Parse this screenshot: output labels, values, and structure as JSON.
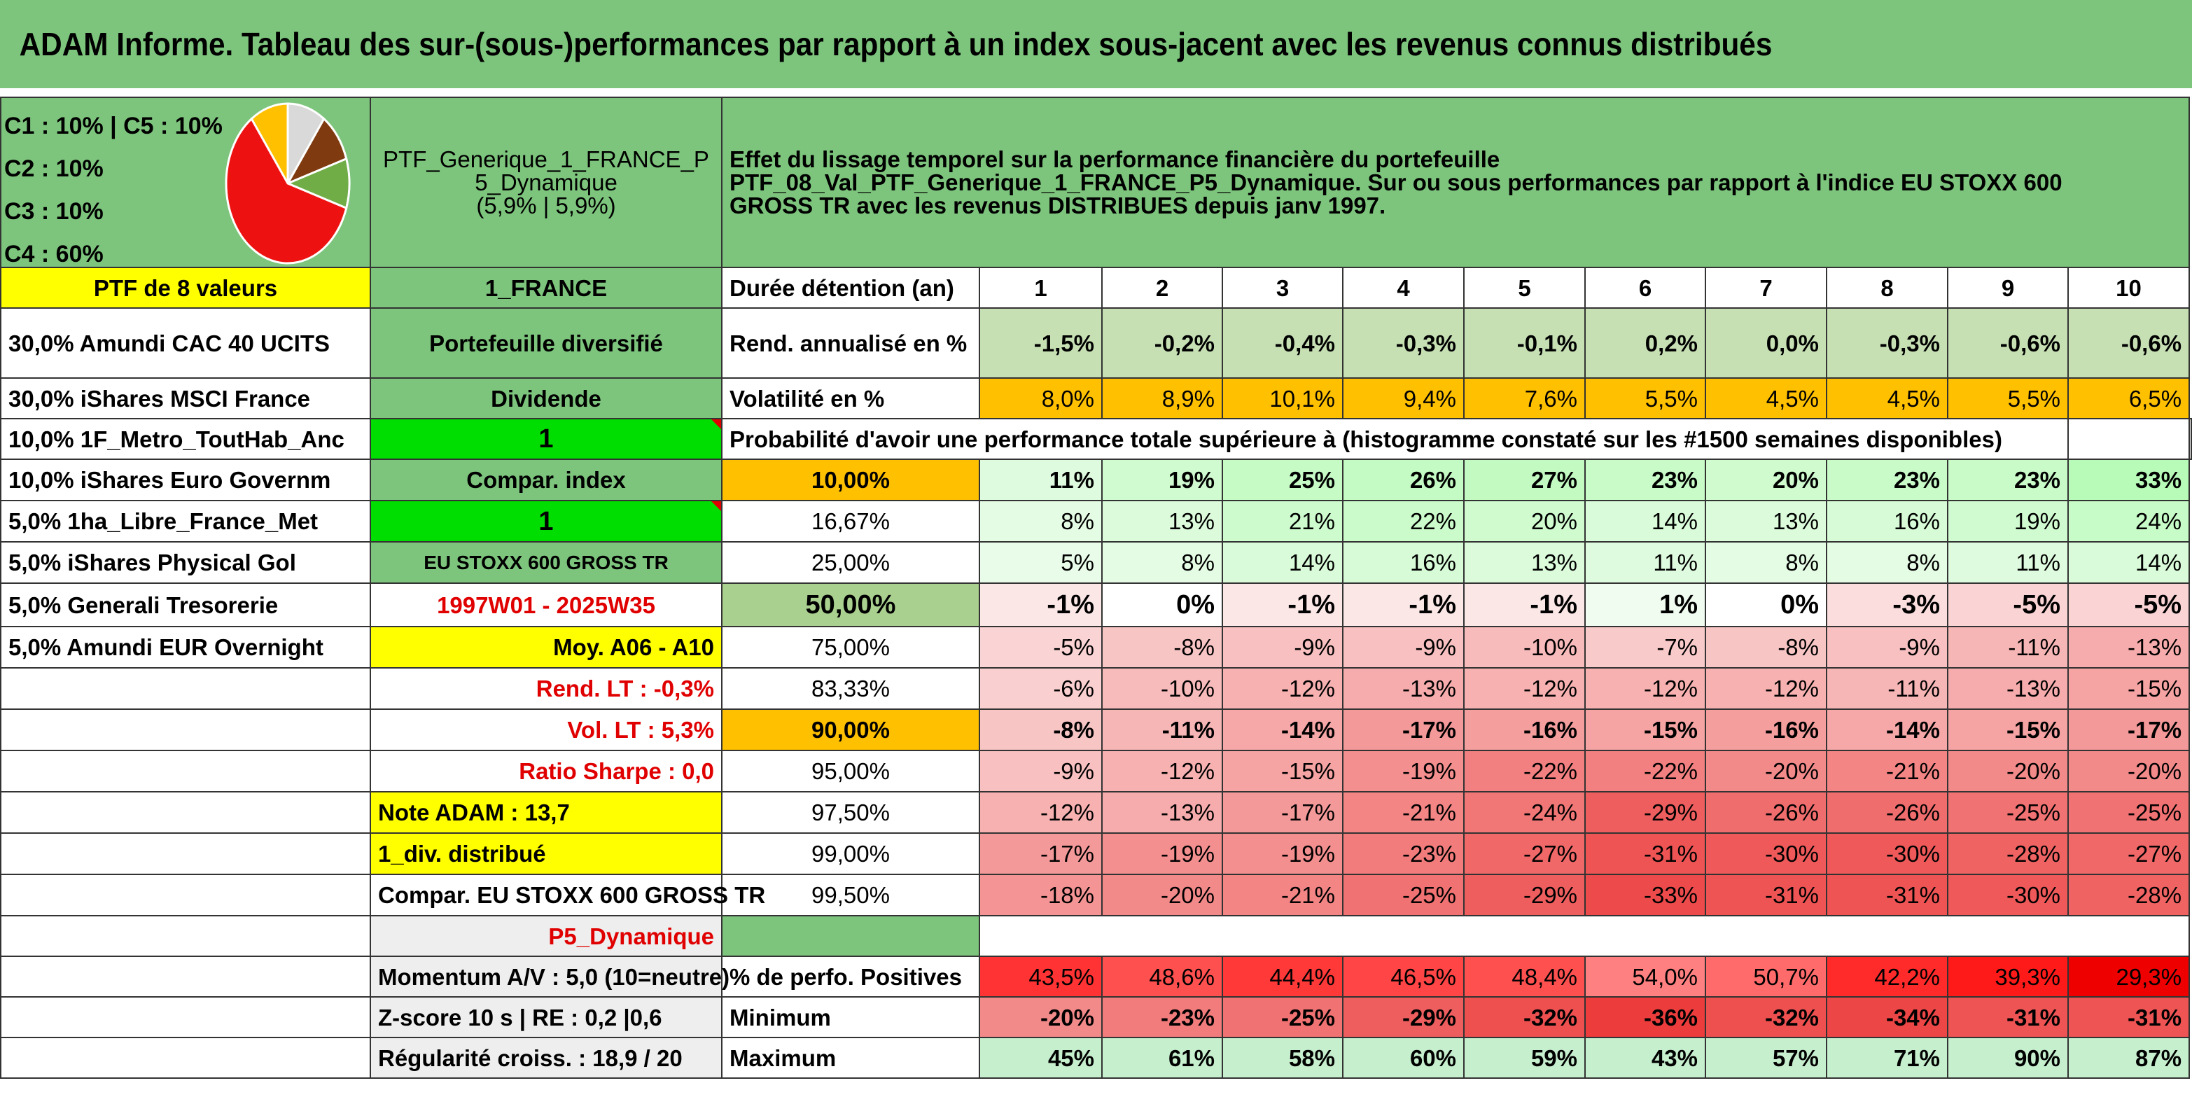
{
  "title": "ADAM Informe. Tableau des sur-(sous-)performances par rapport à un index sous-jacent avec les revenus connus distribués",
  "pie": {
    "labels": [
      "C1 : 10% | C5 : 10%",
      "C2 : 10%",
      "C3 : 10%",
      "C4 : 60%"
    ],
    "slices": [
      {
        "name": "C1",
        "value": 10,
        "color": "#d9d9d9"
      },
      {
        "name": "C2",
        "value": 10,
        "color": "#7f3a10"
      },
      {
        "name": "C3",
        "value": 10,
        "color": "#70ad47"
      },
      {
        "name": "C4",
        "value": 60,
        "color": "#ee1111"
      },
      {
        "name": "C5",
        "value": 10,
        "color": "#ffc000"
      }
    ]
  },
  "portfolio": {
    "name_line1": "PTF_Generique_1_FRANCE_P",
    "name_line2": "5_Dynamique",
    "name_line3": "(5,9% | 5,9%)"
  },
  "effect": {
    "line1": "Effet du lissage temporel sur la performance financière du portefeuille",
    "line2": "PTF_08_Val_PTF_Generique_1_FRANCE_P5_Dynamique. Sur ou sous performances par rapport à l'indice EU STOXX 600",
    "line3": "GROSS TR avec les revenus DISTRIBUES depuis janv 1997."
  },
  "left_col": [
    "PTF de 8 valeurs",
    "30,0% Amundi CAC 40 UCITS",
    "30,0% iShares MSCI France",
    "10,0% 1F_Metro_ToutHab_Anc",
    "10,0% iShares Euro Governm",
    "5,0% 1ha_Libre_France_Met",
    "5,0% iShares Physical Gol",
    "5,0% Generali Tresorerie",
    "5,0% Amundi EUR Overnight"
  ],
  "mid_col": {
    "france": "1_FRANCE",
    "diversifie": "Portefeuille diversifié",
    "dividende": "Dividende",
    "one_a": "1",
    "compar_index": "Compar. index",
    "one_b": "1",
    "index_name": "EU STOXX 600 GROSS TR",
    "period": "1997W01 - 2025W35",
    "moy": "Moy. A06 - A10",
    "rend_lt": "Rend. LT : -0,3%",
    "vol_lt": "Vol. LT : 5,3%",
    "sharpe": "Ratio Sharpe : 0,0",
    "note": "Note ADAM : 13,7",
    "div": "1_div. distribué",
    "compar": "Compar. EU STOXX 600 GROSS TR",
    "profile": "P5_Dynamique",
    "momentum": "Momentum A/V : 5,0 (10=neutre)",
    "zscore": "Z-score 10 s | RE : 0,2 |0,6",
    "regularite": "Régularité croiss. : 18,9 / 20"
  },
  "table": {
    "duree_label": "Durée détention (an)",
    "years": [
      "1",
      "2",
      "3",
      "4",
      "5",
      "6",
      "7",
      "8",
      "9",
      "10"
    ],
    "rend_label": "Rend. annualisé en %",
    "rend": [
      "-1,5%",
      "-0,2%",
      "-0,4%",
      "-0,3%",
      "-0,1%",
      "0,2%",
      "0,0%",
      "-0,3%",
      "-0,6%",
      "-0,6%"
    ],
    "vol_label": "Volatilité en %",
    "vol": [
      "8,0%",
      "8,9%",
      "10,1%",
      "9,4%",
      "7,6%",
      "5,5%",
      "4,5%",
      "4,5%",
      "5,5%",
      "6,5%"
    ],
    "proba_label": "Probabilité d'avoir une performance totale supérieure à (histogramme constaté sur les #1500 semaines disponibles)",
    "quantiles": [
      {
        "q": "10,00%",
        "vals": [
          "11%",
          "19%",
          "25%",
          "26%",
          "27%",
          "23%",
          "20%",
          "23%",
          "23%",
          "33%"
        ]
      },
      {
        "q": "16,67%",
        "vals": [
          "8%",
          "13%",
          "21%",
          "22%",
          "20%",
          "14%",
          "13%",
          "16%",
          "19%",
          "24%"
        ]
      },
      {
        "q": "25,00%",
        "vals": [
          "5%",
          "8%",
          "14%",
          "16%",
          "13%",
          "11%",
          "8%",
          "8%",
          "11%",
          "14%"
        ]
      },
      {
        "q": "50,00%",
        "vals": [
          "-1%",
          "0%",
          "-1%",
          "-1%",
          "-1%",
          "1%",
          "0%",
          "-3%",
          "-5%",
          "-5%"
        ]
      },
      {
        "q": "75,00%",
        "vals": [
          "-5%",
          "-8%",
          "-9%",
          "-9%",
          "-10%",
          "-7%",
          "-8%",
          "-9%",
          "-11%",
          "-13%"
        ]
      },
      {
        "q": "83,33%",
        "vals": [
          "-6%",
          "-10%",
          "-12%",
          "-13%",
          "-12%",
          "-12%",
          "-12%",
          "-11%",
          "-13%",
          "-15%"
        ]
      },
      {
        "q": "90,00%",
        "vals": [
          "-8%",
          "-11%",
          "-14%",
          "-17%",
          "-16%",
          "-15%",
          "-16%",
          "-14%",
          "-15%",
          "-17%"
        ]
      },
      {
        "q": "95,00%",
        "vals": [
          "-9%",
          "-12%",
          "-15%",
          "-19%",
          "-22%",
          "-22%",
          "-20%",
          "-21%",
          "-20%",
          "-20%"
        ]
      },
      {
        "q": "97,50%",
        "vals": [
          "-12%",
          "-13%",
          "-17%",
          "-21%",
          "-24%",
          "-29%",
          "-26%",
          "-26%",
          "-25%",
          "-25%"
        ]
      },
      {
        "q": "99,00%",
        "vals": [
          "-17%",
          "-19%",
          "-19%",
          "-23%",
          "-27%",
          "-31%",
          "-30%",
          "-30%",
          "-28%",
          "-27%"
        ]
      },
      {
        "q": "99,50%",
        "vals": [
          "-18%",
          "-20%",
          "-21%",
          "-25%",
          "-29%",
          "-33%",
          "-31%",
          "-31%",
          "-30%",
          "-28%"
        ]
      }
    ],
    "pos_label": "% de perfo. Positives",
    "pos": [
      "43,5%",
      "48,6%",
      "44,4%",
      "46,5%",
      "48,4%",
      "54,0%",
      "50,7%",
      "42,2%",
      "39,3%",
      "29,3%"
    ],
    "min_label": "Minimum",
    "min": [
      "-20%",
      "-23%",
      "-25%",
      "-29%",
      "-32%",
      "-36%",
      "-32%",
      "-34%",
      "-31%",
      "-31%"
    ],
    "max_label": "Maximum",
    "max": [
      "45%",
      "61%",
      "58%",
      "60%",
      "59%",
      "43%",
      "57%",
      "71%",
      "90%",
      "87%"
    ]
  },
  "colors": {
    "header_green": "#7dc57d",
    "yellow": "#ffff00",
    "orange": "#ffc000",
    "bright_green": "#00dd00",
    "red_text": "#e00000"
  }
}
